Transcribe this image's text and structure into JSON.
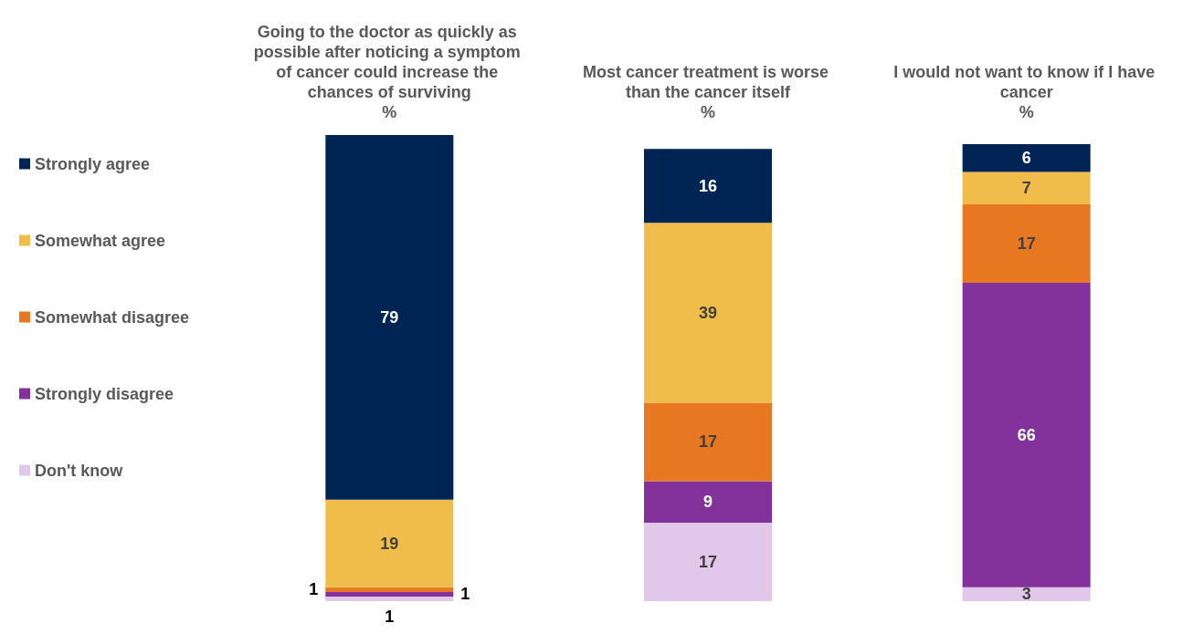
{
  "chart_data": {
    "type": "bar",
    "stacked": true,
    "ylabel": "%",
    "categories": [
      "Going to the doctor as quickly as possible after noticing a symptom of cancer could increase the chances of surviving",
      "Most cancer treatment is worse than the cancer itself",
      "I would not want to know if I have cancer"
    ],
    "series": [
      {
        "name": "Don't know",
        "color": "#e1c8ea",
        "values": [
          1,
          17,
          3
        ]
      },
      {
        "name": "Strongly disagree",
        "color": "#84329b",
        "values": [
          1,
          9,
          66
        ]
      },
      {
        "name": "Somewhat disagree",
        "color": "#e87722",
        "values": [
          1,
          17,
          17
        ]
      },
      {
        "name": "Somewhat agree",
        "color": "#f0bd4b",
        "values": [
          19,
          39,
          7
        ]
      },
      {
        "name": "Strongly agree",
        "color": "#002554",
        "values": [
          79,
          16,
          6
        ]
      }
    ],
    "data_labels": true,
    "legend": "left"
  }
}
